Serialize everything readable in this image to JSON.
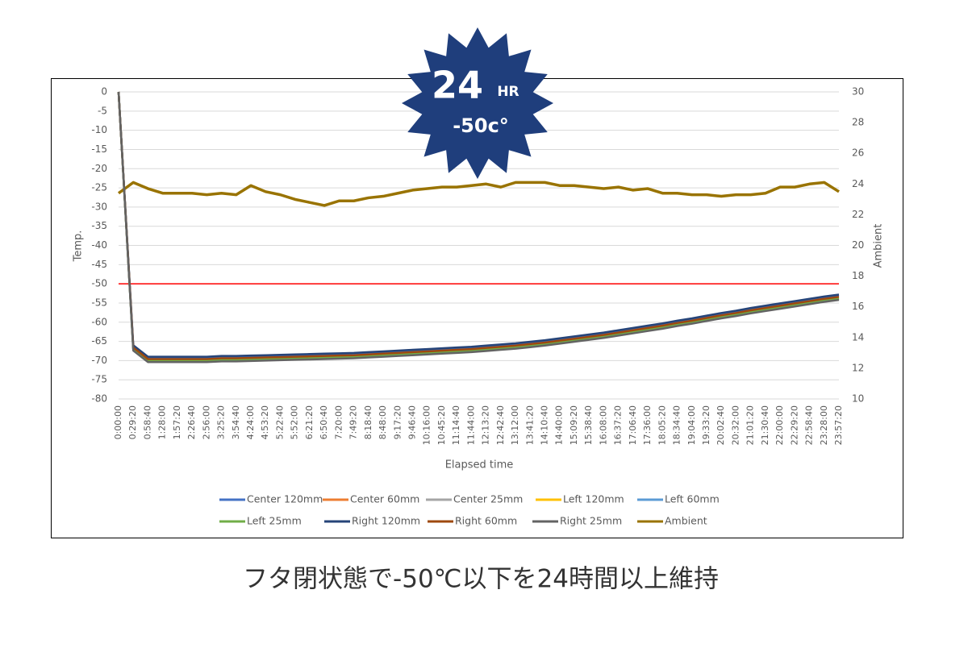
{
  "chart_data": {
    "type": "line",
    "ylabel": "Temp.",
    "y2label": "Ambient",
    "xlabel": "Elapsed time",
    "categories": [
      "0:00:00",
      "0:29:20",
      "0:58:40",
      "1:28:00",
      "1:57:20",
      "2:26:40",
      "2:56:00",
      "3:25:20",
      "3:54:40",
      "4:24:00",
      "4:53:20",
      "5:22:40",
      "5:52:00",
      "6:21:20",
      "6:50:40",
      "7:20:00",
      "7:49:20",
      "8:18:40",
      "8:48:00",
      "9:17:20",
      "9:46:40",
      "10:16:00",
      "10:45:20",
      "11:14:40",
      "11:44:00",
      "12:13:20",
      "12:42:40",
      "13:12:00",
      "13:41:20",
      "14:10:40",
      "14:40:00",
      "15:09:20",
      "15:38:40",
      "16:08:00",
      "16:37:20",
      "17:06:40",
      "17:36:00",
      "18:05:20",
      "18:34:40",
      "19:04:00",
      "19:33:20",
      "20:02:40",
      "20:32:00",
      "21:01:20",
      "21:30:40",
      "22:00:00",
      "22:29:20",
      "22:58:40",
      "23:28:00",
      "23:57:20"
    ],
    "ylim": [
      -80,
      0
    ],
    "yticks": [
      0,
      -5,
      -10,
      -15,
      -20,
      -25,
      -30,
      -35,
      -40,
      -45,
      -50,
      -55,
      -60,
      -65,
      -70,
      -75,
      -80
    ],
    "y2lim": [
      10,
      30
    ],
    "y2ticks": [
      10,
      12,
      14,
      16,
      18,
      20,
      22,
      24,
      26,
      28,
      30
    ],
    "grid": true,
    "legend": "bottom",
    "threshold": {
      "value": -50,
      "color": "#ff0000"
    },
    "series": [
      {
        "name": "Center 120mm",
        "color": "#4472c4",
        "values": [
          0,
          -66.3,
          -69.3,
          -69.3,
          -69.3,
          -69.3,
          -69.3,
          -69.1,
          -69.1,
          -69,
          -68.9,
          -68.8,
          -68.7,
          -68.6,
          -68.5,
          -68.4,
          -68.3,
          -68.1,
          -67.9,
          -67.7,
          -67.5,
          -67.3,
          -67.1,
          -66.9,
          -66.7,
          -66.4,
          -66.1,
          -65.8,
          -65.4,
          -65,
          -64.5,
          -64,
          -63.5,
          -63,
          -62.4,
          -61.8,
          -61.2,
          -60.6,
          -59.9,
          -59.3,
          -58.6,
          -57.9,
          -57.3,
          -56.6,
          -56,
          -55.4,
          -54.8,
          -54.2,
          -53.6,
          -53.1
        ]
      },
      {
        "name": "Center 60mm",
        "color": "#ed7d31",
        "values": [
          0,
          -66.8,
          -69.8,
          -69.8,
          -69.8,
          -69.8,
          -69.8,
          -69.6,
          -69.6,
          -69.5,
          -69.4,
          -69.3,
          -69.2,
          -69.1,
          -69,
          -68.9,
          -68.8,
          -68.6,
          -68.4,
          -68.2,
          -68,
          -67.8,
          -67.6,
          -67.4,
          -67.2,
          -66.9,
          -66.6,
          -66.3,
          -65.9,
          -65.5,
          -65,
          -64.5,
          -64,
          -63.5,
          -62.9,
          -62.3,
          -61.7,
          -61.1,
          -60.4,
          -59.8,
          -59.1,
          -58.4,
          -57.8,
          -57.1,
          -56.5,
          -55.9,
          -55.3,
          -54.7,
          -54.1,
          -53.6
        ]
      },
      {
        "name": "Center 25mm",
        "color": "#a5a5a5",
        "values": [
          0,
          -67.2,
          -70.2,
          -70.2,
          -70.2,
          -70.2,
          -70.2,
          -70,
          -70,
          -69.9,
          -69.8,
          -69.7,
          -69.6,
          -69.5,
          -69.4,
          -69.3,
          -69.2,
          -69,
          -68.8,
          -68.6,
          -68.4,
          -68.2,
          -68,
          -67.8,
          -67.6,
          -67.3,
          -67,
          -66.7,
          -66.3,
          -65.9,
          -65.4,
          -64.9,
          -64.4,
          -63.9,
          -63.3,
          -62.7,
          -62.1,
          -61.5,
          -60.8,
          -60.2,
          -59.5,
          -58.8,
          -58.2,
          -57.5,
          -56.9,
          -56.3,
          -55.7,
          -55.1,
          -54.5,
          -54
        ]
      },
      {
        "name": "Left 120mm",
        "color": "#ffc000",
        "values": [
          0,
          -67,
          -70,
          -70,
          -70,
          -70,
          -70,
          -69.8,
          -69.8,
          -69.7,
          -69.6,
          -69.5,
          -69.4,
          -69.3,
          -69.2,
          -69.1,
          -69,
          -68.8,
          -68.6,
          -68.4,
          -68.2,
          -68,
          -67.8,
          -67.6,
          -67.4,
          -67.1,
          -66.8,
          -66.5,
          -66.1,
          -65.7,
          -65.2,
          -64.7,
          -64.2,
          -63.7,
          -63.1,
          -62.5,
          -61.9,
          -61.3,
          -60.6,
          -60,
          -59.3,
          -58.6,
          -58,
          -57.3,
          -56.7,
          -56.1,
          -55.5,
          -54.9,
          -54.3,
          -53.8
        ]
      },
      {
        "name": "Left 60mm",
        "color": "#5b9bd5",
        "values": [
          0,
          -67.2,
          -70.2,
          -70.2,
          -70.2,
          -70.2,
          -70.2,
          -70,
          -70,
          -69.9,
          -69.8,
          -69.7,
          -69.6,
          -69.5,
          -69.4,
          -69.3,
          -69.2,
          -69,
          -68.8,
          -68.6,
          -68.4,
          -68.2,
          -68,
          -67.8,
          -67.6,
          -67.3,
          -67,
          -66.7,
          -66.3,
          -65.9,
          -65.4,
          -64.9,
          -64.4,
          -63.9,
          -63.3,
          -62.7,
          -62.1,
          -61.5,
          -60.8,
          -60.2,
          -59.5,
          -58.8,
          -58.2,
          -57.5,
          -56.9,
          -56.3,
          -55.7,
          -55.1,
          -54.5,
          -54
        ]
      },
      {
        "name": "Left 25mm",
        "color": "#70ad47",
        "values": [
          0,
          -67,
          -70,
          -70,
          -70,
          -70,
          -70,
          -69.8,
          -69.8,
          -69.7,
          -69.6,
          -69.5,
          -69.4,
          -69.3,
          -69.2,
          -69.1,
          -69,
          -68.8,
          -68.6,
          -68.4,
          -68.2,
          -68,
          -67.8,
          -67.6,
          -67.4,
          -67.1,
          -66.8,
          -66.5,
          -66.1,
          -65.7,
          -65.2,
          -64.7,
          -64.2,
          -63.7,
          -63.1,
          -62.5,
          -61.9,
          -61.3,
          -60.6,
          -60,
          -59.3,
          -58.6,
          -58,
          -57.3,
          -56.7,
          -56.1,
          -55.5,
          -54.9,
          -54.3,
          -53.8
        ]
      },
      {
        "name": "Right 120mm",
        "color": "#264478",
        "values": [
          0,
          -66,
          -69,
          -69,
          -69,
          -69,
          -69,
          -68.8,
          -68.8,
          -68.7,
          -68.6,
          -68.5,
          -68.4,
          -68.3,
          -68.2,
          -68.1,
          -68,
          -67.8,
          -67.6,
          -67.4,
          -67.2,
          -67,
          -66.8,
          -66.6,
          -66.4,
          -66.1,
          -65.8,
          -65.5,
          -65.1,
          -64.7,
          -64.2,
          -63.7,
          -63.2,
          -62.7,
          -62.1,
          -61.5,
          -60.9,
          -60.3,
          -59.6,
          -59,
          -58.3,
          -57.6,
          -57,
          -56.3,
          -55.7,
          -55.1,
          -54.5,
          -53.9,
          -53.3,
          -52.8
        ]
      },
      {
        "name": "Right 60mm",
        "color": "#9e480e",
        "values": [
          0,
          -66.6,
          -69.6,
          -69.6,
          -69.6,
          -69.6,
          -69.6,
          -69.4,
          -69.4,
          -69.3,
          -69.2,
          -69.1,
          -69,
          -68.9,
          -68.8,
          -68.7,
          -68.6,
          -68.4,
          -68.2,
          -68,
          -67.8,
          -67.6,
          -67.4,
          -67.2,
          -67,
          -66.7,
          -66.4,
          -66.1,
          -65.7,
          -65.3,
          -64.8,
          -64.3,
          -63.8,
          -63.3,
          -62.7,
          -62.1,
          -61.5,
          -60.9,
          -60.2,
          -59.6,
          -58.9,
          -58.2,
          -57.6,
          -56.9,
          -56.3,
          -55.7,
          -55.1,
          -54.5,
          -53.9,
          -53.4
        ]
      },
      {
        "name": "Right 25mm",
        "color": "#636363",
        "values": [
          0,
          -67.4,
          -70.4,
          -70.4,
          -70.4,
          -70.4,
          -70.4,
          -70.2,
          -70.2,
          -70.1,
          -70,
          -69.9,
          -69.8,
          -69.7,
          -69.6,
          -69.5,
          -69.4,
          -69.2,
          -69,
          -68.8,
          -68.6,
          -68.4,
          -68.2,
          -68,
          -67.8,
          -67.5,
          -67.2,
          -66.9,
          -66.5,
          -66.1,
          -65.6,
          -65.1,
          -64.6,
          -64.1,
          -63.5,
          -62.9,
          -62.3,
          -61.7,
          -61,
          -60.4,
          -59.7,
          -59,
          -58.4,
          -57.7,
          -57.1,
          -56.5,
          -55.9,
          -55.3,
          -54.7,
          -54.2
        ]
      },
      {
        "name": "Ambient",
        "color": "#997300",
        "axis": "y2",
        "values": [
          23.4,
          24.1,
          23.7,
          23.4,
          23.4,
          23.4,
          23.3,
          23.4,
          23.3,
          23.9,
          23.5,
          23.3,
          23,
          22.8,
          22.6,
          22.9,
          22.9,
          23.1,
          23.2,
          23.4,
          23.6,
          23.7,
          23.8,
          23.8,
          23.9,
          24,
          23.8,
          24.1,
          24.1,
          24.1,
          23.9,
          23.9,
          23.8,
          23.7,
          23.8,
          23.6,
          23.7,
          23.4,
          23.4,
          23.3,
          23.3,
          23.2,
          23.3,
          23.3,
          23.4,
          23.8,
          23.8,
          24,
          24.1,
          23.5
        ]
      }
    ]
  },
  "badge": {
    "number": "24",
    "unit": "HR",
    "temp": "-50c°"
  },
  "caption": "フタ閉状態で-50℃以下を24時間以上維持"
}
